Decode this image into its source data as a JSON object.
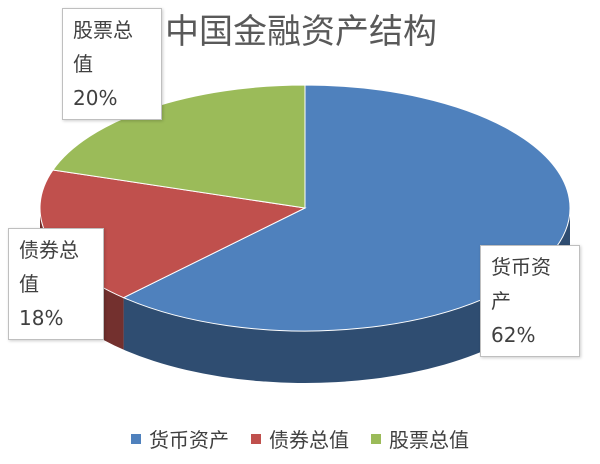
{
  "chart_data": {
    "type": "pie",
    "title": "中国金融资产结构",
    "categories": [
      "货币资产",
      "债券总值",
      "股票总值"
    ],
    "values": [
      62,
      18,
      20
    ],
    "value_labels": [
      "62%",
      "18%",
      "20%"
    ],
    "colors": [
      "#4f81bd",
      "#c0504d",
      "#9bbb59"
    ],
    "legend": "bottom"
  }
}
